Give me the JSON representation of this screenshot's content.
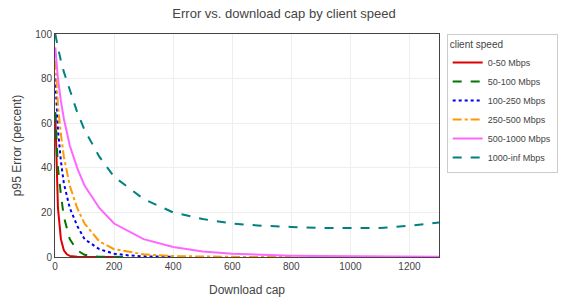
{
  "chart_data": {
    "type": "line",
    "title": "Error vs. download cap by client speed",
    "x_label": "Download cap",
    "y_label": "p95 Error (percent)",
    "xlim": [
      0,
      1300
    ],
    "ylim": [
      0,
      100
    ],
    "xticks": [
      0,
      200,
      400,
      600,
      800,
      1000,
      1200
    ],
    "yticks": [
      0,
      20,
      40,
      60,
      80,
      100
    ],
    "grid": true,
    "legend": "right",
    "legend_title": "client speed",
    "series": [
      {
        "name": "0-50 Mbps",
        "color": "#dd0000",
        "line_style": "solid",
        "x": [
          1,
          5,
          10,
          20,
          30,
          40,
          50,
          75,
          100,
          125,
          150,
          175,
          200
        ],
        "values": [
          64,
          40,
          22,
          8,
          3,
          1.2,
          0.5,
          0.1,
          0.03,
          0.01,
          0.005,
          0.002,
          0.001
        ]
      },
      {
        "name": "50-100 Mbps",
        "color": "#007700",
        "line_style": "dash",
        "x": [
          1,
          5,
          10,
          20,
          30,
          50,
          75,
          100,
          125,
          150,
          200,
          250
        ],
        "values": [
          65,
          50,
          40,
          28,
          18,
          8,
          3,
          1,
          0.4,
          0.15,
          0.03,
          0.01
        ]
      },
      {
        "name": "100-250 Mbps",
        "color": "#0000ee",
        "line_style": "dot",
        "x": [
          1,
          5,
          10,
          20,
          30,
          50,
          75,
          100,
          150,
          200,
          250,
          300,
          350,
          400
        ],
        "values": [
          80,
          68,
          57,
          43,
          33,
          22,
          14,
          8,
          3.5,
          1.5,
          0.7,
          0.3,
          0.1,
          0.05
        ]
      },
      {
        "name": "250-500 Mbps",
        "color": "#ff9900",
        "line_style": "dashdot",
        "x": [
          1,
          5,
          10,
          20,
          30,
          50,
          75,
          100,
          150,
          200,
          300,
          400,
          500,
          600,
          700,
          800
        ],
        "values": [
          88,
          78,
          68,
          55,
          45,
          32,
          22,
          15,
          7,
          3.5,
          1.2,
          0.4,
          0.15,
          0.06,
          0.02,
          0.01
        ]
      },
      {
        "name": "500-1000 Mbps",
        "color": "#ff66ff",
        "line_style": "solid",
        "x": [
          1,
          5,
          10,
          20,
          30,
          50,
          75,
          100,
          150,
          200,
          300,
          400,
          500,
          600,
          700,
          800,
          900,
          1000,
          1100,
          1200,
          1300
        ],
        "values": [
          94,
          87,
          80,
          70,
          62,
          50,
          40,
          32,
          22,
          15,
          8,
          4.5,
          2.5,
          1.5,
          0.9,
          0.6,
          0.4,
          0.3,
          0.2,
          0.15,
          0.1
        ]
      },
      {
        "name": "1000-inf Mbps",
        "color": "#008080",
        "line_style": "dash",
        "x": [
          1,
          5,
          10,
          20,
          30,
          50,
          75,
          100,
          150,
          200,
          300,
          400,
          500,
          600,
          700,
          800,
          900,
          1000,
          1100,
          1200,
          1300
        ],
        "values": [
          100,
          97,
          94,
          88,
          83,
          75,
          65,
          57,
          45,
          36,
          26,
          20,
          17,
          15,
          14,
          13.5,
          13,
          13,
          13,
          14,
          15.5
        ]
      }
    ]
  }
}
